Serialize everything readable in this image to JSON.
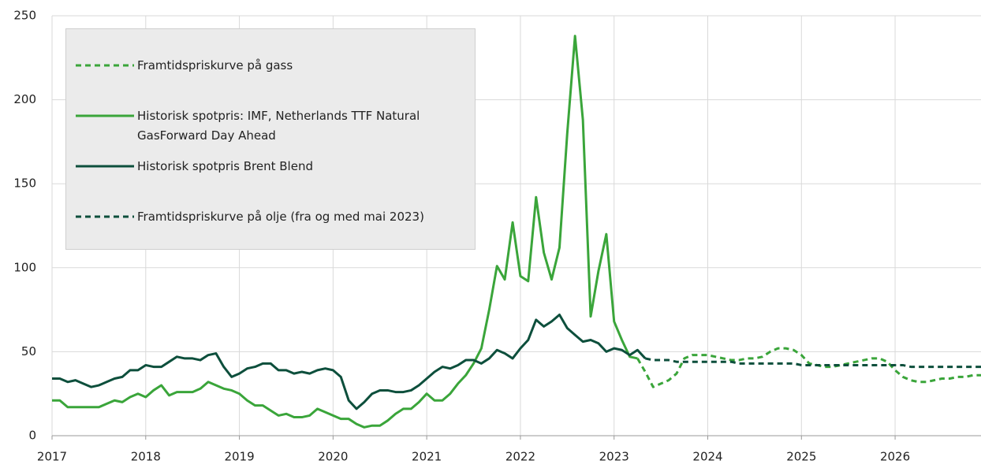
{
  "chart_data": {
    "type": "line",
    "x": [
      2017,
      2017.083,
      2017.167,
      2017.25,
      2017.333,
      2017.417,
      2017.5,
      2017.583,
      2017.667,
      2017.75,
      2017.833,
      2017.917,
      2018,
      2018.083,
      2018.167,
      2018.25,
      2018.333,
      2018.417,
      2018.5,
      2018.583,
      2018.667,
      2018.75,
      2018.833,
      2018.917,
      2019,
      2019.083,
      2019.167,
      2019.25,
      2019.333,
      2019.417,
      2019.5,
      2019.583,
      2019.667,
      2019.75,
      2019.833,
      2019.917,
      2020,
      2020.083,
      2020.167,
      2020.25,
      2020.333,
      2020.417,
      2020.5,
      2020.583,
      2020.667,
      2020.75,
      2020.833,
      2020.917,
      2021,
      2021.083,
      2021.167,
      2021.25,
      2021.333,
      2021.417,
      2021.5,
      2021.583,
      2021.667,
      2021.75,
      2021.833,
      2021.917,
      2022,
      2022.083,
      2022.167,
      2022.25,
      2022.333,
      2022.417,
      2022.5,
      2022.583,
      2022.667,
      2022.75,
      2022.833,
      2022.917,
      2023,
      2023.083,
      2023.167,
      2023.25,
      2023.333,
      2023.417,
      2023.5,
      2023.583,
      2023.667,
      2023.75,
      2023.833,
      2023.917,
      2024,
      2024.083,
      2024.167,
      2024.25,
      2024.333,
      2024.417,
      2024.5,
      2024.583,
      2024.667,
      2024.75,
      2024.833,
      2024.917,
      2025,
      2025.083,
      2025.167,
      2025.25,
      2025.333,
      2025.417,
      2025.5,
      2025.583,
      2025.667,
      2025.75,
      2025.833,
      2025.917,
      2026,
      2026.083,
      2026.167,
      2026.25,
      2026.333,
      2026.417,
      2026.5,
      2026.583,
      2026.667,
      2026.75,
      2026.833,
      2026.917
    ],
    "series": [
      {
        "name": "Framtidspriskurve på gass",
        "color": "#3aa53a",
        "dashed": true,
        "values": [
          null,
          null,
          null,
          null,
          null,
          null,
          null,
          null,
          null,
          null,
          null,
          null,
          null,
          null,
          null,
          null,
          null,
          null,
          null,
          null,
          null,
          null,
          null,
          null,
          null,
          null,
          null,
          null,
          null,
          null,
          null,
          null,
          null,
          null,
          null,
          null,
          null,
          null,
          null,
          null,
          null,
          null,
          null,
          null,
          null,
          null,
          null,
          null,
          null,
          null,
          null,
          null,
          null,
          null,
          null,
          null,
          null,
          null,
          null,
          null,
          null,
          null,
          null,
          null,
          null,
          null,
          null,
          null,
          null,
          null,
          null,
          null,
          null,
          null,
          null,
          46,
          38,
          29,
          31,
          33,
          37,
          46,
          48,
          48,
          48,
          47,
          46,
          45,
          45,
          46,
          46,
          47,
          50,
          52,
          52,
          51,
          48,
          43,
          42,
          41,
          41,
          42,
          43,
          44,
          45,
          46,
          46,
          44,
          39,
          35,
          33,
          32,
          32,
          33,
          34,
          34,
          35,
          35,
          36,
          36
        ]
      },
      {
        "name": "Historisk spotpris: IMF, Netherlands TTF Natural GasForward Day Ahead",
        "color": "#3aa53a",
        "dashed": false,
        "values": [
          21,
          21,
          17,
          17,
          17,
          17,
          17,
          19,
          21,
          20,
          23,
          25,
          23,
          27,
          30,
          24,
          26,
          26,
          26,
          28,
          32,
          30,
          28,
          27,
          25,
          21,
          18,
          18,
          15,
          12,
          13,
          11,
          11,
          12,
          16,
          14,
          12,
          10,
          10,
          7,
          5,
          6,
          6,
          9,
          13,
          16,
          16,
          20,
          25,
          21,
          21,
          25,
          31,
          36,
          43,
          52,
          75,
          101,
          93,
          127,
          95,
          92,
          142,
          109,
          93,
          112,
          180,
          238,
          188,
          71,
          98,
          120,
          68,
          57,
          47,
          46,
          null,
          null,
          null,
          null,
          null,
          null,
          null,
          null,
          null,
          null,
          null,
          null,
          null,
          null,
          null,
          null,
          null,
          null,
          null,
          null,
          null,
          null,
          null,
          null,
          null,
          null,
          null,
          null,
          null,
          null,
          null,
          null,
          null,
          null,
          null,
          null,
          null,
          null,
          null,
          null,
          null,
          null,
          null,
          null
        ]
      },
      {
        "name": "Historisk spotpris Brent Blend",
        "color": "#0d4f3c",
        "dashed": false,
        "values": [
          34,
          34,
          32,
          33,
          31,
          29,
          30,
          32,
          34,
          35,
          39,
          39,
          42,
          41,
          41,
          44,
          47,
          46,
          46,
          45,
          48,
          49,
          41,
          35,
          37,
          40,
          41,
          43,
          43,
          39,
          39,
          37,
          38,
          37,
          39,
          40,
          39,
          35,
          21,
          16,
          20,
          25,
          27,
          27,
          26,
          26,
          27,
          30,
          34,
          38,
          41,
          40,
          42,
          45,
          45,
          43,
          46,
          51,
          49,
          46,
          52,
          57,
          69,
          65,
          68,
          72,
          64,
          60,
          56,
          57,
          55,
          50,
          52,
          51,
          48,
          51,
          46,
          null,
          null,
          null,
          null,
          null,
          null,
          null,
          null,
          null,
          null,
          null,
          null,
          null,
          null,
          null,
          null,
          null,
          null,
          null,
          null,
          null,
          null,
          null,
          null,
          null,
          null,
          null,
          null,
          null,
          null,
          null,
          null,
          null,
          null,
          null,
          null,
          null,
          null,
          null,
          null,
          null,
          null,
          null
        ]
      },
      {
        "name": "Framtidspriskurve på olje (fra og med mai 2023)",
        "color": "#0d4f3c",
        "dashed": true,
        "values": [
          null,
          null,
          null,
          null,
          null,
          null,
          null,
          null,
          null,
          null,
          null,
          null,
          null,
          null,
          null,
          null,
          null,
          null,
          null,
          null,
          null,
          null,
          null,
          null,
          null,
          null,
          null,
          null,
          null,
          null,
          null,
          null,
          null,
          null,
          null,
          null,
          null,
          null,
          null,
          null,
          null,
          null,
          null,
          null,
          null,
          null,
          null,
          null,
          null,
          null,
          null,
          null,
          null,
          null,
          null,
          null,
          null,
          null,
          null,
          null,
          null,
          null,
          null,
          null,
          null,
          null,
          null,
          null,
          null,
          null,
          null,
          null,
          null,
          null,
          null,
          null,
          46,
          45,
          45,
          45,
          44,
          44,
          44,
          44,
          44,
          44,
          44,
          44,
          43,
          43,
          43,
          43,
          43,
          43,
          43,
          43,
          42,
          42,
          42,
          42,
          42,
          42,
          42,
          42,
          42,
          42,
          42,
          42,
          42,
          42,
          41,
          41,
          41,
          41,
          41,
          41,
          41,
          41,
          41,
          41
        ]
      }
    ],
    "xlim": [
      2017,
      2026.917
    ],
    "xticks": [
      2017,
      2018,
      2019,
      2020,
      2021,
      2022,
      2023,
      2024,
      2025,
      2026
    ],
    "ylim": [
      0,
      250
    ],
    "yticks": [
      0,
      50,
      100,
      150,
      200,
      250
    ],
    "grid": true,
    "legend": "upper left"
  }
}
